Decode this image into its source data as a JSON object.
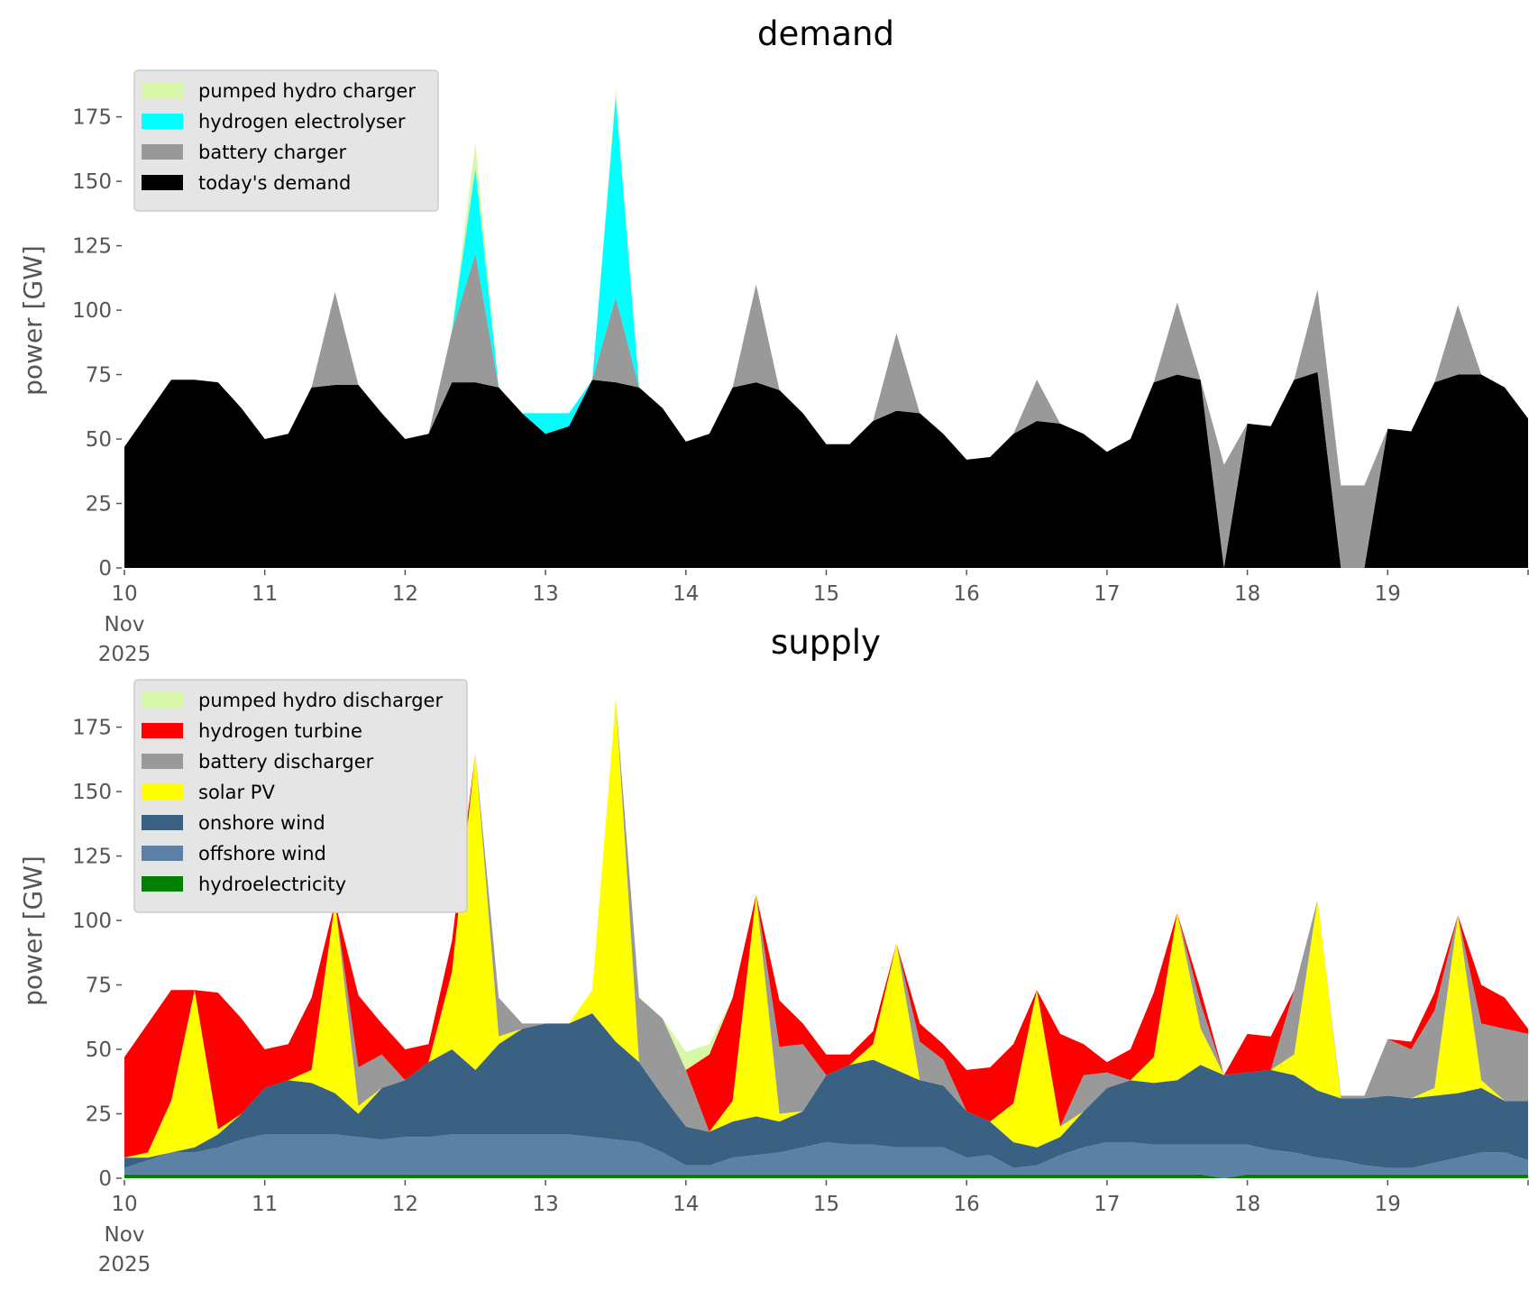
{
  "chart_data": [
    {
      "type": "area",
      "stacked": true,
      "title": "demand",
      "ylabel": "power [GW]",
      "xlabel": "",
      "x_start_day": 10,
      "x_step_days": 0.16667,
      "xlim": [
        10,
        20
      ],
      "ylim": [
        0,
        192
      ],
      "yticks": [
        "0",
        "25",
        "50",
        "75",
        "100",
        "125",
        "150",
        "175"
      ],
      "ytick_values": [
        0,
        25,
        50,
        75,
        100,
        125,
        150,
        175
      ],
      "xticks": [
        "10",
        "11",
        "12",
        "13",
        "14",
        "15",
        "16",
        "17",
        "18",
        "19"
      ],
      "xtick_values": [
        10,
        11,
        12,
        13,
        14,
        15,
        16,
        17,
        18,
        19
      ],
      "xtick_sub": [
        "Nov",
        "2025"
      ],
      "legend_placement": "top-left",
      "grid": false,
      "series": [
        {
          "name": "today's demand",
          "color": "#000000",
          "values": [
            47,
            60,
            73,
            73,
            72,
            62,
            50,
            52,
            70,
            71,
            71,
            60,
            50,
            52,
            72,
            72,
            70,
            60,
            52,
            55,
            73,
            72,
            70,
            62,
            49,
            52,
            70,
            72,
            69,
            60,
            48,
            48,
            57,
            61,
            60,
            52,
            42,
            43,
            52,
            57,
            56,
            52,
            45,
            50,
            72,
            75,
            73,
            0,
            56,
            55,
            73,
            76,
            0,
            0,
            54,
            53,
            72,
            75,
            75,
            70,
            58
          ]
        },
        {
          "name": "battery charger",
          "color": "#999999",
          "values": [
            0,
            0,
            0,
            0,
            0,
            0,
            0,
            0,
            0,
            36,
            0,
            0,
            0,
            0,
            20,
            50,
            0,
            0,
            0,
            0,
            0,
            33,
            0,
            0,
            0,
            0,
            0,
            38,
            0,
            0,
            0,
            0,
            0,
            30,
            0,
            0,
            0,
            0,
            0,
            16,
            0,
            0,
            0,
            0,
            0,
            28,
            0,
            40,
            0,
            0,
            0,
            32,
            32,
            32,
            0,
            0,
            0,
            27,
            0,
            0,
            0
          ]
        },
        {
          "name": "hydrogen electrolyser",
          "color": "#00ffff",
          "values": [
            0,
            0,
            0,
            0,
            0,
            0,
            0,
            0,
            0,
            0,
            0,
            0,
            0,
            0,
            0,
            33,
            0,
            0,
            8,
            5,
            0,
            78,
            0,
            0,
            0,
            0,
            0,
            0,
            0,
            0,
            0,
            0,
            0,
            0,
            0,
            0,
            0,
            0,
            0,
            0,
            0,
            0,
            0,
            0,
            0,
            0,
            0,
            0,
            0,
            0,
            0,
            0,
            0,
            0,
            0,
            0,
            0,
            0,
            0,
            0,
            0
          ]
        },
        {
          "name": "pumped hydro charger",
          "color": "#d9f7a8",
          "values": [
            0,
            0,
            0,
            0,
            0,
            0,
            0,
            0,
            0,
            0,
            0,
            0,
            0,
            0,
            0,
            10,
            0,
            0,
            0,
            0,
            0,
            3,
            0,
            0,
            0,
            0,
            0,
            0,
            0,
            0,
            0,
            0,
            0,
            0,
            0,
            0,
            0,
            0,
            0,
            0,
            0,
            0,
            0,
            0,
            0,
            0,
            0,
            0,
            0,
            0,
            0,
            0,
            0,
            0,
            0,
            0,
            0,
            0,
            0,
            0,
            0
          ]
        }
      ]
    },
    {
      "type": "area",
      "stacked": true,
      "title": "supply",
      "ylabel": "power [GW]",
      "xlabel": "",
      "x_start_day": 10,
      "x_step_days": 0.16667,
      "xlim": [
        10,
        20
      ],
      "ylim": [
        0,
        192
      ],
      "yticks": [
        "0",
        "25",
        "50",
        "75",
        "100",
        "125",
        "150",
        "175"
      ],
      "ytick_values": [
        0,
        25,
        50,
        75,
        100,
        125,
        150,
        175
      ],
      "xticks": [
        "10",
        "11",
        "12",
        "13",
        "14",
        "15",
        "16",
        "17",
        "18",
        "19"
      ],
      "xtick_values": [
        10,
        11,
        12,
        13,
        14,
        15,
        16,
        17,
        18,
        19
      ],
      "xtick_sub": [
        "Nov",
        "2025"
      ],
      "legend_placement": "top-left",
      "grid": false,
      "series": [
        {
          "name": "hydroelectricity",
          "color": "#008000",
          "values": [
            1.5,
            1.5,
            1.5,
            1.5,
            1.5,
            1.5,
            1.5,
            1.5,
            1.5,
            1.5,
            1.5,
            1.5,
            1.5,
            1.5,
            1.5,
            1.5,
            1.5,
            1.5,
            1.5,
            1.5,
            1.5,
            1.5,
            1.5,
            1.5,
            1.5,
            1.5,
            1.5,
            1.5,
            1.5,
            1.5,
            1.5,
            1.5,
            1.5,
            1.5,
            1.5,
            1.5,
            1.5,
            1.5,
            1.5,
            1.5,
            1.5,
            1.5,
            1.5,
            1.5,
            1.5,
            1.5,
            1.5,
            0,
            1.5,
            1.5,
            1.5,
            1.5,
            1.5,
            1.5,
            1.5,
            1.5,
            1.5,
            1.5,
            1.5,
            1.5,
            1.5
          ]
        },
        {
          "name": "offshore wind",
          "color": "#5b82a5",
          "values": [
            2.5,
            5.5,
            8.5,
            8.5,
            10.5,
            13.5,
            15.5,
            15.5,
            15.5,
            15.5,
            14.5,
            13.5,
            14.5,
            14.5,
            15.5,
            15.5,
            15.5,
            15.5,
            15.5,
            15.5,
            14.5,
            13.5,
            12.5,
            8.5,
            3.5,
            3.5,
            6.5,
            7.5,
            8.5,
            10.5,
            12.5,
            11.5,
            11.5,
            10.5,
            10.5,
            10.5,
            6.5,
            7.5,
            2.5,
            3.5,
            7.5,
            10.5,
            12.5,
            12.5,
            11.5,
            11.5,
            11.5,
            13,
            11.5,
            9.5,
            8.5,
            6.5,
            5.5,
            3.5,
            2.5,
            2.5,
            4.5,
            6.5,
            8.5,
            8.5,
            5.5
          ]
        },
        {
          "name": "onshore wind",
          "color": "#3b6182",
          "values": [
            4,
            1,
            0,
            2,
            5,
            10,
            18,
            21,
            20,
            16,
            9,
            20,
            22,
            29,
            33,
            25,
            35,
            41,
            43,
            43,
            48,
            38,
            31,
            22,
            15,
            13,
            14,
            15,
            12,
            14,
            26,
            31,
            33,
            30,
            26,
            24,
            18,
            13,
            10,
            7,
            7,
            14,
            21,
            24,
            24,
            25,
            31,
            27,
            28,
            31,
            30,
            26,
            24,
            26,
            28,
            27,
            26,
            25,
            25,
            20,
            23
          ]
        },
        {
          "name": "solar PV",
          "color": "#ffff00",
          "values": [
            0,
            2,
            20,
            61,
            2,
            0,
            0,
            0,
            5,
            74,
            3,
            0,
            0,
            0,
            30,
            123,
            3,
            0,
            0,
            0,
            9,
            133,
            0,
            0,
            0,
            0,
            8,
            86,
            3,
            0,
            0,
            0,
            6,
            49,
            0,
            0,
            0,
            0,
            15,
            61,
            4,
            0,
            0,
            0,
            10,
            65,
            14,
            0,
            0,
            0,
            8,
            74,
            0,
            0,
            0,
            0,
            3,
            69,
            3,
            0,
            0
          ]
        },
        {
          "name": "battery discharger",
          "color": "#999999",
          "values": [
            0,
            0,
            0,
            0,
            0,
            0,
            0,
            0,
            0,
            0,
            15,
            13,
            0,
            0,
            0,
            0,
            15,
            2,
            0,
            0,
            0,
            0,
            25,
            30,
            22,
            0,
            0,
            0,
            26,
            26,
            0,
            0,
            0,
            0,
            15,
            10,
            0,
            0,
            0,
            0,
            0,
            14,
            6,
            0,
            0,
            0,
            10,
            0,
            0,
            0,
            25,
            0,
            1,
            1,
            22,
            19,
            30,
            0,
            22,
            28,
            26
          ]
        },
        {
          "name": "hydrogen turbine",
          "color": "#ff0000",
          "values": [
            39,
            50,
            43,
            0,
            53,
            37,
            15,
            14,
            28,
            0,
            28,
            12,
            12,
            7,
            12,
            0,
            0,
            0,
            0,
            0,
            0,
            0,
            0,
            0,
            0,
            30,
            40,
            0,
            18,
            8,
            8,
            4,
            5,
            0,
            7,
            6,
            16,
            21,
            23,
            0,
            36,
            12,
            4,
            12,
            25,
            0,
            5,
            0,
            15,
            13,
            0,
            0,
            0,
            0,
            0,
            3,
            7,
            0,
            15,
            12,
            2
          ]
        },
        {
          "name": "pumped hydro discharger",
          "color": "#d9f7a8",
          "values": [
            0,
            0,
            0,
            0,
            0,
            0,
            0,
            0,
            0,
            0,
            0,
            0,
            0,
            0,
            0,
            0,
            0,
            0,
            0,
            0,
            0,
            0,
            0,
            0,
            7,
            4,
            0,
            0,
            0,
            0,
            0,
            0,
            0,
            0,
            0,
            0,
            0,
            0,
            0,
            0,
            0,
            0,
            0,
            0,
            0,
            0,
            0,
            0,
            0,
            0,
            0,
            0,
            0,
            0,
            0,
            0,
            0,
            0,
            0,
            0,
            0
          ]
        }
      ]
    }
  ]
}
